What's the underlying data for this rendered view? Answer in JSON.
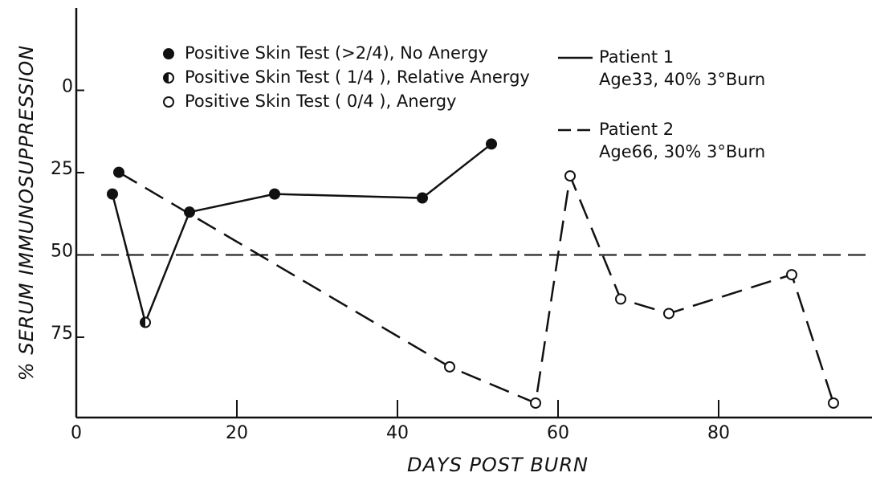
{
  "chart_data": {
    "type": "line",
    "x_label": "DAYS POST BURN",
    "y_label": "% SERUM IMMUNOSUPPRESSION",
    "xlim": [
      0,
      99.1
    ],
    "ylim": [
      -25,
      99.4
    ],
    "y_inverted": true,
    "xticks": [
      0,
      20,
      40,
      60,
      80
    ],
    "yticks": [
      0,
      25,
      50,
      75
    ],
    "reference_line": 50,
    "marker_legend": [
      {
        "marker": "filled",
        "label": "Positive Skin Test (>2/4), No Anergy"
      },
      {
        "marker": "half",
        "label": "Positive Skin Test ( 1/4 ), Relative Anergy"
      },
      {
        "marker": "open",
        "label": "Positive Skin Test ( 0/4 ), Anergy"
      }
    ],
    "series": [
      {
        "name": "Patient 1",
        "description": "Age33, 40%  3°Burn",
        "color": "#111",
        "dash": "solid",
        "x": [
          4.5,
          8.6,
          14.1,
          24.7,
          43.1,
          51.7
        ],
        "values": [
          31.5,
          70.5,
          37,
          31.5,
          32.7,
          16.3
        ],
        "markers": [
          "filled",
          "half",
          "filled",
          "filled",
          "filled",
          "filled"
        ]
      },
      {
        "name": "Patient 2",
        "description": "Age66, 30%  3°Burn",
        "color": "#111",
        "dash": "dashed",
        "x": [
          5.3,
          46.5,
          57.2,
          61.5,
          67.8,
          73.8,
          89.1,
          94.3
        ],
        "values": [
          24.9,
          84,
          95,
          26,
          63.4,
          67.8,
          56,
          95
        ],
        "markers": [
          "filled",
          "open",
          "open",
          "open",
          "open",
          "open",
          "open",
          "open"
        ]
      }
    ]
  }
}
